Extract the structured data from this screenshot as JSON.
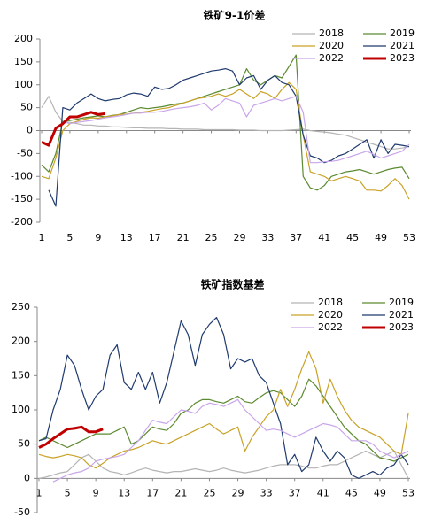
{
  "chart_data": [
    {
      "type": "line",
      "title": "铁矿9-1价差",
      "legend": "top-right",
      "x": [
        1,
        2,
        3,
        4,
        5,
        6,
        7,
        8,
        9,
        10,
        11,
        12,
        13,
        14,
        15,
        16,
        17,
        18,
        19,
        20,
        21,
        22,
        23,
        24,
        25,
        26,
        27,
        28,
        29,
        30,
        31,
        32,
        33,
        34,
        35,
        36,
        37,
        38,
        39,
        40,
        41,
        42,
        43,
        44,
        45,
        46,
        47,
        48,
        49,
        50,
        51,
        52,
        53
      ],
      "xlim": [
        1,
        53
      ],
      "xticks": [
        1,
        5,
        9,
        13,
        17,
        21,
        25,
        29,
        33,
        37,
        41,
        45,
        49,
        53
      ],
      "ylim": [
        -200,
        200
      ],
      "yticks": [
        -200,
        -150,
        -100,
        -50,
        0,
        50,
        100,
        150,
        200
      ],
      "series": [
        {
          "name": "2018",
          "color": "#b4b4b4",
          "values": [
            50,
            75,
            40,
            20,
            18,
            15,
            12,
            12,
            10,
            10,
            8,
            8,
            7,
            6,
            6,
            5,
            5,
            5,
            4,
            4,
            3,
            3,
            3,
            2,
            2,
            2,
            2,
            2,
            1,
            1,
            1,
            0,
            0,
            0,
            0,
            1,
            2,
            3,
            0,
            -2,
            -3,
            -5,
            -8,
            -10,
            -15,
            -20,
            -25,
            -30,
            -35,
            -40,
            -40,
            -38,
            -35
          ]
        },
        {
          "name": "2019",
          "color": "#5b8a30",
          "values": [
            -75,
            -90,
            -50,
            20,
            22,
            25,
            28,
            30,
            32,
            30,
            33,
            35,
            40,
            45,
            50,
            48,
            50,
            52,
            55,
            58,
            60,
            65,
            70,
            75,
            80,
            85,
            90,
            95,
            100,
            135,
            110,
            100,
            110,
            120,
            115,
            140,
            165,
            -100,
            -125,
            -130,
            -120,
            -100,
            -95,
            -90,
            -88,
            -85,
            -90,
            -95,
            -90,
            -85,
            -82,
            -80,
            -105
          ]
        },
        {
          "name": "2020",
          "color": "#c9a227",
          "values": [
            -100,
            -105,
            -60,
            0,
            15,
            20,
            25,
            28,
            27,
            30,
            32,
            35,
            36,
            38,
            40,
            42,
            45,
            48,
            50,
            55,
            60,
            65,
            70,
            72,
            75,
            80,
            75,
            80,
            90,
            80,
            70,
            85,
            80,
            70,
            90,
            105,
            90,
            -10,
            -90,
            -95,
            -100,
            -110,
            -105,
            -100,
            -105,
            -110,
            -130,
            -130,
            -132,
            -120,
            -105,
            -120,
            -150
          ]
        },
        {
          "name": "2021",
          "color": "#1f3a6e",
          "values": [
            null,
            -130,
            -165,
            50,
            45,
            60,
            70,
            80,
            70,
            65,
            68,
            70,
            78,
            82,
            80,
            75,
            95,
            90,
            92,
            100,
            110,
            115,
            120,
            125,
            130,
            132,
            135,
            130,
            100,
            115,
            120,
            90,
            110,
            120,
            105,
            100,
            75,
            -10,
            -55,
            -60,
            -70,
            -65,
            -55,
            -50,
            -40,
            -30,
            -20,
            -60,
            -20,
            -50,
            -30,
            -32,
            -35
          ]
        },
        {
          "name": "2022",
          "color": "#c9a6ea",
          "values": [
            null,
            null,
            null,
            20,
            15,
            18,
            20,
            22,
            25,
            28,
            30,
            32,
            35,
            38,
            38,
            40,
            40,
            42,
            45,
            48,
            50,
            52,
            55,
            60,
            45,
            55,
            70,
            65,
            60,
            30,
            55,
            60,
            65,
            70,
            65,
            70,
            75,
            40,
            -70,
            -70,
            -68,
            -67,
            -65,
            -60,
            -55,
            -50,
            -45,
            -52,
            -60,
            -55,
            -50,
            -45,
            -30
          ]
        },
        {
          "name": "2023",
          "color": "#c00000",
          "width": 3,
          "values": [
            -25,
            -32,
            5,
            15,
            30,
            30,
            35,
            40,
            35,
            37,
            null,
            null,
            null,
            null,
            null,
            null,
            null,
            null,
            null,
            null,
            null,
            null,
            null,
            null,
            null,
            null,
            null,
            null,
            null,
            null,
            null,
            null,
            null,
            null,
            null,
            null,
            null,
            null,
            null,
            null,
            null,
            null,
            null,
            null,
            null,
            null,
            null,
            null,
            null,
            null,
            null,
            null,
            null
          ]
        }
      ]
    },
    {
      "type": "line",
      "title": "铁矿指数基差",
      "legend": "top-right",
      "x": [
        1,
        2,
        3,
        4,
        5,
        6,
        7,
        8,
        9,
        10,
        11,
        12,
        13,
        14,
        15,
        16,
        17,
        18,
        19,
        20,
        21,
        22,
        23,
        24,
        25,
        26,
        27,
        28,
        29,
        30,
        31,
        32,
        33,
        34,
        35,
        36,
        37,
        38,
        39,
        40,
        41,
        42,
        43,
        44,
        45,
        46,
        47,
        48,
        49,
        50,
        51,
        52,
        53
      ],
      "xlim": [
        1,
        53
      ],
      "xticks": [
        1,
        5,
        9,
        13,
        17,
        21,
        25,
        29,
        33,
        37,
        41,
        45,
        49,
        53
      ],
      "ylim": [
        -50,
        250
      ],
      "yticks": [
        -50,
        0,
        50,
        100,
        150,
        200,
        250
      ],
      "series": [
        {
          "name": "2018",
          "color": "#b4b4b4",
          "values": [
            0,
            2,
            5,
            8,
            10,
            20,
            30,
            35,
            25,
            15,
            10,
            8,
            5,
            8,
            12,
            15,
            12,
            10,
            8,
            10,
            10,
            12,
            14,
            12,
            10,
            12,
            15,
            12,
            10,
            8,
            10,
            12,
            15,
            18,
            20,
            20,
            20,
            18,
            15,
            15,
            18,
            20,
            20,
            25,
            30,
            35,
            40,
            35,
            30,
            35,
            40,
            20,
            0
          ]
        },
        {
          "name": "2019",
          "color": "#5b8a30",
          "values": [
            55,
            60,
            55,
            50,
            45,
            50,
            55,
            60,
            65,
            65,
            65,
            70,
            75,
            50,
            55,
            65,
            75,
            72,
            70,
            80,
            95,
            100,
            110,
            115,
            115,
            112,
            110,
            115,
            120,
            112,
            110,
            118,
            125,
            128,
            125,
            115,
            105,
            120,
            145,
            135,
            120,
            105,
            90,
            75,
            65,
            55,
            50,
            40,
            30,
            28,
            25,
            30,
            35
          ]
        },
        {
          "name": "2020",
          "color": "#c9a227",
          "values": [
            35,
            32,
            30,
            32,
            35,
            33,
            30,
            20,
            15,
            22,
            30,
            35,
            40,
            42,
            45,
            50,
            55,
            52,
            50,
            55,
            60,
            65,
            70,
            75,
            80,
            72,
            65,
            70,
            75,
            40,
            60,
            75,
            90,
            100,
            130,
            105,
            130,
            160,
            185,
            160,
            110,
            145,
            120,
            100,
            85,
            75,
            70,
            65,
            60,
            50,
            40,
            35,
            95
          ]
        },
        {
          "name": "2021",
          "color": "#1f3a6e",
          "values": [
            55,
            58,
            100,
            130,
            180,
            165,
            130,
            100,
            120,
            130,
            180,
            195,
            140,
            130,
            155,
            130,
            155,
            110,
            140,
            185,
            230,
            210,
            165,
            210,
            225,
            235,
            210,
            160,
            175,
            170,
            175,
            150,
            140,
            110,
            80,
            20,
            35,
            10,
            20,
            60,
            40,
            25,
            40,
            30,
            5,
            0,
            5,
            10,
            5,
            15,
            20,
            35,
            20
          ]
        },
        {
          "name": "2022",
          "color": "#c9a6ea",
          "values": [
            null,
            null,
            -5,
            0,
            5,
            8,
            10,
            15,
            25,
            28,
            30,
            32,
            35,
            45,
            55,
            70,
            85,
            82,
            80,
            90,
            100,
            98,
            95,
            105,
            110,
            108,
            105,
            110,
            115,
            100,
            90,
            80,
            70,
            72,
            70,
            65,
            60,
            65,
            70,
            75,
            80,
            78,
            75,
            65,
            55,
            55,
            55,
            50,
            40,
            35,
            30,
            35,
            40
          ]
        },
        {
          "name": "2023",
          "color": "#c00000",
          "width": 3,
          "values": [
            45,
            50,
            58,
            65,
            72,
            73,
            75,
            68,
            68,
            72,
            null,
            null,
            null,
            null,
            null,
            null,
            null,
            null,
            null,
            null,
            null,
            null,
            null,
            null,
            null,
            null,
            null,
            null,
            null,
            null,
            null,
            null,
            null,
            null,
            null,
            null,
            null,
            null,
            null,
            null,
            null,
            null,
            null,
            null,
            null,
            null,
            null,
            null,
            null,
            null,
            null,
            null,
            null
          ]
        }
      ]
    }
  ]
}
